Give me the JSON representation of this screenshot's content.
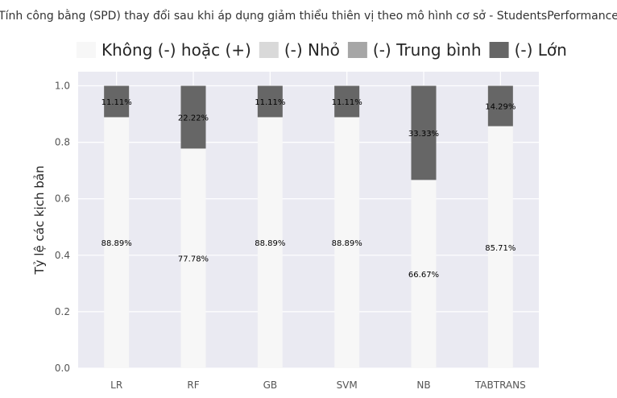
{
  "chart_data": {
    "type": "bar",
    "stacked": true,
    "title": "Tính công bằng (SPD) thay đổi sau khi áp dụng giảm thiểu thiên vị theo mô hình cơ sở - StudentsPerformance",
    "xlabel": "",
    "ylabel": "Tỷ lệ các kịch bản",
    "ylim": [
      0,
      1.05
    ],
    "yticks": [
      "0.0",
      "0.2",
      "0.4",
      "0.6",
      "0.8",
      "1.0"
    ],
    "grid": true,
    "legend_position": "top",
    "categories": [
      "LR",
      "RF",
      "GB",
      "SVM",
      "NB",
      "TABTRANS"
    ],
    "series": [
      {
        "name": "Không (-) hoặc (+)",
        "color": "#f7f7f7",
        "values": [
          0.8889,
          0.7778,
          0.8889,
          0.8889,
          0.6667,
          0.8571
        ],
        "labels": [
          "88.89%",
          "77.78%",
          "88.89%",
          "88.89%",
          "66.67%",
          "85.71%"
        ]
      },
      {
        "name": "(-) Nhỏ",
        "color": "#d9d9d9",
        "values": [
          0,
          0,
          0,
          0,
          0,
          0
        ],
        "labels": [
          "",
          "",
          "",
          "",
          "",
          ""
        ]
      },
      {
        "name": "(-) Trung bình",
        "color": "#a6a6a6",
        "values": [
          0,
          0,
          0,
          0,
          0,
          0
        ],
        "labels": [
          "",
          "",
          "",
          "",
          "",
          ""
        ]
      },
      {
        "name": "(-) Lớn",
        "color": "#666666",
        "values": [
          0.1111,
          0.2222,
          0.1111,
          0.1111,
          0.3333,
          0.1429
        ],
        "labels": [
          "11.11%",
          "22.22%",
          "11.11%",
          "11.11%",
          "33.33%",
          "14.29%"
        ]
      }
    ],
    "colors": {
      "plot_background": "#eaeaf2",
      "grid": "#ffffff"
    }
  }
}
